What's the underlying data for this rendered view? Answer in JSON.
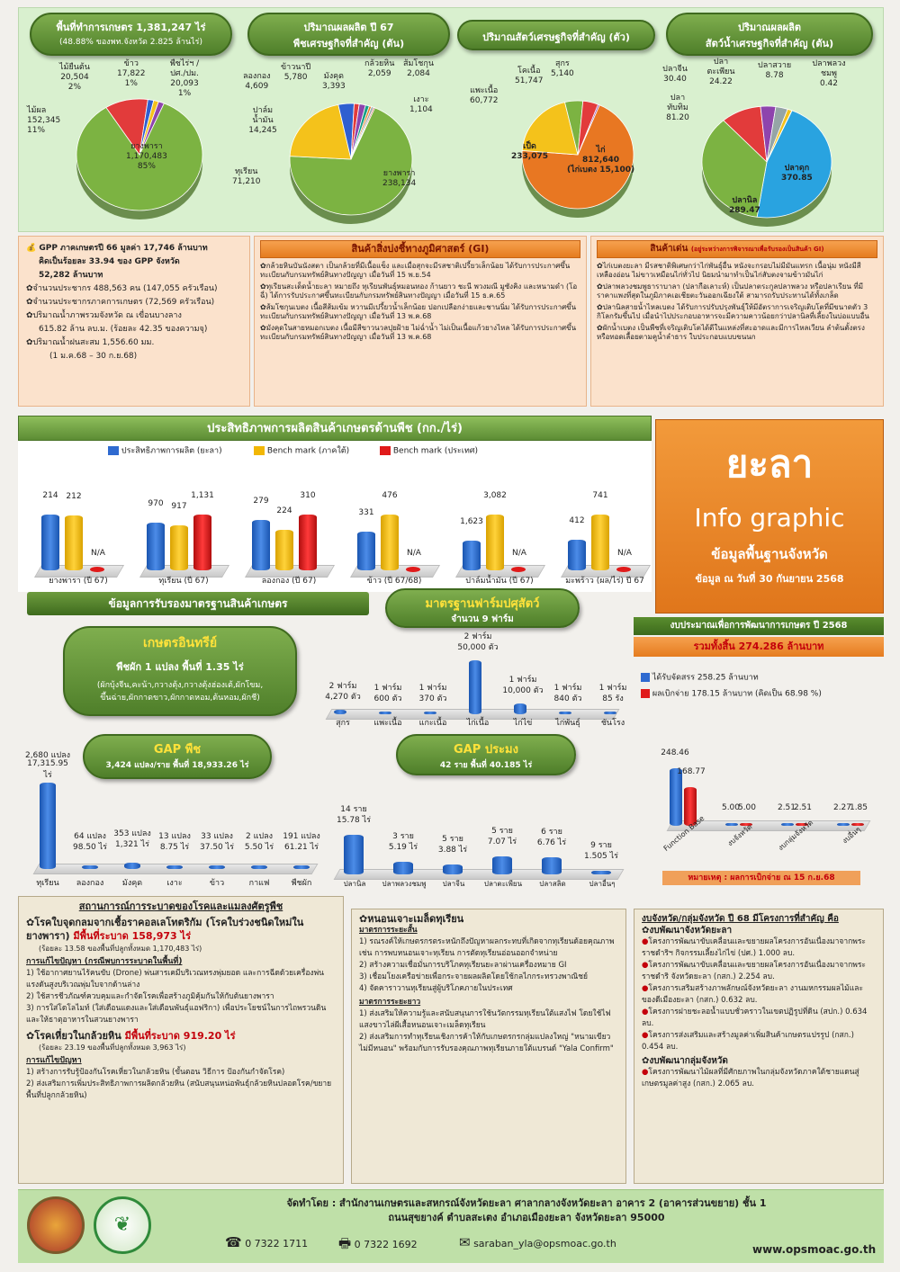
{
  "top": {
    "agri_area_title": "พื้นที่ทำการเกษตร 1,381,247 ไร่",
    "agri_area_sub": "(48.88% ของพท.จังหวัด 2.825 ล้านไร่)",
    "crop_title1": "ปริมาณผลผลิต ปี 67",
    "crop_title2": "พืชเศรษฐกิจที่สำคัญ (ตัน)",
    "livestock_title": "ปริมาณสัตว์เศรษฐกิจที่สำคัญ (ตัว)",
    "fish_title1": "ปริมาณผลผลิต",
    "fish_title2": "สัตว์น้ำเศรษฐกิจที่สำคัญ (ตัน)"
  },
  "pie1": [
    {
      "name": "ยางพารา",
      "value": "1,170,483",
      "pct": "85%",
      "color": "#7cb342"
    },
    {
      "name": "ไม้ผล",
      "value": "152,345",
      "pct": "11%",
      "color": "#e23b3b"
    },
    {
      "name": "ไม้ยืนต้น",
      "value": "20,504",
      "pct": "2%",
      "color": "#2f5fd0"
    },
    {
      "name": "ข้าว",
      "value": "17,822",
      "pct": "1%",
      "color": "#f4c21b"
    },
    {
      "name": "พืชไร่ฯ / ปศ./ปม.",
      "value": "20,093",
      "pct": "1%",
      "color": "#8e44ad"
    }
  ],
  "pie2": [
    {
      "name": "ยางพารา",
      "value": "238,134",
      "color": "#7cb342"
    },
    {
      "name": "ทุเรียน",
      "value": "71,210",
      "color": "#f4c21b"
    },
    {
      "name": "ปาล์มน้ำมัน",
      "value": "14,245",
      "color": "#2f5fd0"
    },
    {
      "name": "ลองกอง",
      "value": "4,609",
      "color": "#e23b3b"
    },
    {
      "name": "ข้าวนาปี",
      "value": "5,780",
      "color": "#8e44ad"
    },
    {
      "name": "มังคุด",
      "value": "3,393",
      "color": "#16a085"
    },
    {
      "name": "กล้วยหิน",
      "value": "2,059",
      "color": "#e67e22"
    },
    {
      "name": "ส้มโชกุน",
      "value": "2,084",
      "color": "#95a5a6"
    },
    {
      "name": "เงาะ",
      "value": "1,104",
      "color": "#c0392b"
    }
  ],
  "pie3": [
    {
      "name": "ไก่",
      "value": "812,640",
      "note": "(ไก่เบตง 15,100)",
      "color": "#e87722"
    },
    {
      "name": "เป็ด",
      "value": "233,075",
      "color": "#f4c21b"
    },
    {
      "name": "แพะเนื้อ",
      "value": "60,772",
      "color": "#7cb342"
    },
    {
      "name": "โคเนื้อ",
      "value": "51,747",
      "color": "#e23b3b"
    },
    {
      "name": "สุกร",
      "value": "5,140",
      "color": "#8e44ad"
    }
  ],
  "pie4": [
    {
      "name": "ปลาดุก",
      "value": "370.85",
      "color": "#29a3e0"
    },
    {
      "name": "ปลานิล",
      "value": "289.47",
      "color": "#7cb342"
    },
    {
      "name": "ปลาทับทิม",
      "value": "81.20",
      "color": "#e23b3b"
    },
    {
      "name": "ปลาจีน",
      "value": "30.40",
      "color": "#8e44ad"
    },
    {
      "name": "ปลาตะเพียน",
      "value": "24.22",
      "color": "#95a5a6"
    },
    {
      "name": "ปลาสวาย",
      "value": "8.78",
      "color": "#f4c21b"
    },
    {
      "name": "ปลาพลวงชมพู",
      "value": "0.42",
      "color": "#e67e22"
    }
  ],
  "gpp": {
    "lines": [
      "GPP ภาคเกษตรปี 66 มูลค่า 17,746 ล้านบาท",
      "คิดเป็นร้อยละ 33.94 ของ GPP จังหวัด",
      "52,282 ล้านบาท",
      "จำนวนประชากร 488,563 คน (147,055 ครัวเรือน)",
      "จำนวนประชากรภาคการเกษตร (72,569 ครัวเรือน)",
      "ปริมาณน้ำภาพรวมจังหวัด ณ เขื่อนบางลาง",
      "615.82 ล้าน ลบ.ม. (ร้อยละ 42.35 ของความจุ)",
      "ปริมาณน้ำฝนสะสม 1,556.60 มม.",
      "(1 ม.ค.68 – 30 ก.ย.68)"
    ]
  },
  "gi": {
    "title": "สินค้าสิ่งบ่งชี้ทางภูมิศาสตร์ (GI)",
    "items": [
      "กล้วยหินบันนังสตา เป็นกล้วยที่มีเนื้อแข็ง และเมื่อสุกจะมีรสชาติเปรี้ยวเล็กน้อย ได้รับการประกาศขึ้นทะเบียนกับกรมทรัพย์สินทางปัญญา เมื่อวันที่ 15 พ.ย.54",
      "ทุเรียนสะเด็ดน้ำยะลา หมายถึง ทุเรียนพันธุ์หมอนทอง ก้านยาว ชะนี พวงมณี มูซังคิง และหนามดำ (โอฉี่) ได้การรับประกาศขึ้นทะเบียนกับกรมทรัพย์สินทางปัญญา เมื่อวันที่ 15 ธ.ค.65",
      "ส้มโชกุนเบตง เนื้อสีส้มเข้ม หวานมีเปรี้ยวน้ำเล็กน้อย ปอกเปลือกง่ายและชานนิ่ม ได้รับการประกาศขึ้นทะเบียนกับกรมทรัพย์สินทางปัญญา เมื่อวันที่ 13 พ.ค.68",
      "มังคุดในสายหมอกเบตง เนื้อมีสีขาวนวลปุยฝ้าย ไม่ฉ่ำน้ำ ไม่เป็นเนื้อแก้วยางไหล ได้รับการประกาศขึ้นทะเบียนกับกรมทรัพย์สินทางปัญญา เมื่อวันที่ 13 พ.ค.68"
    ]
  },
  "featured": {
    "title": "สินค้าเด่น",
    "title_note": "(อยู่ระหว่างการพิจารณาเพื่อรับรองเป็นสินค้า GI)",
    "items": [
      "ไก่เบตงยะลา มีรสชาติพิเศษกว่าไก่พันธุ์อื่น หนังจะกรอบไม่มีมันแทรก เนื้อนุ่ม หนังมีสีเหลืองอ่อน ไม่ขาวเหมือนไก่ทั่วไป นิยมนำมาทำเป็นไก่สับตงจามข้าวมันไก่",
      "ปลาพลวงชมพูธาราบาลา (ปลากือเลาะห์) เป็นปลาตระกูลปลาพลวง หรือปลาเรียน ที่มีราคาแพงที่สุดในภูมิภาคเอเชียตะวันออกเฉียงใต้ สามารถรับประทานได้ทั้งเกล็ด",
      "ปลานิลสายน้ำไหลเบตง ได้รับการปรับปรุงพันธุ์ให้มีอัตราการเจริญเติบโตที่มีขนาดตัว 3 กิโลกรัมขึ้นไป เมื่อนำไปประกอบอาหารจะมีความคาวน้อยกว่าปลานิลที่เลี้ยงในบ่อแบบอื่น",
      "ผักน้ำเบตง เป็นพืชที่เจริญเติบโตได้ดีในแหล่งที่สะอาดและมีการไหลเวียน ลำต้นตั้งตรงหรือทอดเลื้อยตามคูน้ำลำธาร ใบประกอบแบบขนนก"
    ]
  },
  "eff_chart": {
    "title": "ประสิทธิภาพการผลิตสินค้าเกษตรด้านพืช (กก./ไร่)",
    "legend": [
      "ประสิทธิภาพการผลิต (ยะลา)",
      "Bench mark (ภาคใต้)",
      "Bench mark (ประเทศ)"
    ]
  },
  "chart_data": [
    {
      "type": "bar",
      "title": "ประสิทธิภาพการผลิตสินค้าเกษตรด้านพืช (กก./ไร่)",
      "categories": [
        "ยางพารา (ปี 67)",
        "ทุเรียน (ปี 67)",
        "ลองกอง (ปี 67)",
        "ข้าว (ปี 67/68)",
        "ปาล์มน้ำมัน (ปี 67)",
        "มะพร้าว (ผล/ไร่) ปี 67"
      ],
      "series": [
        {
          "name": "ประสิทธิภาพการผลิต (ยะลา)",
          "values": [
            214,
            970,
            279,
            331,
            1623,
            412
          ],
          "labels": [
            "214",
            "970",
            "279",
            "331",
            "1,623",
            "412"
          ]
        },
        {
          "name": "Bench mark (ภาคใต้)",
          "values": [
            212,
            917,
            224,
            476,
            3082,
            741
          ],
          "labels": [
            "212",
            "917",
            "224",
            "476",
            "3,082",
            "741"
          ]
        },
        {
          "name": "Bench mark (ประเทศ)",
          "values": [
            null,
            1131,
            310,
            null,
            null,
            null
          ],
          "labels": [
            "N/A",
            "1,131",
            "310",
            "N/A",
            "N/A",
            "N/A"
          ]
        }
      ]
    },
    {
      "type": "bar",
      "title": "มาตรฐานฟาร์มปศุสัตว์",
      "categories": [
        "สุกร",
        "แพะเนื้อ",
        "แกะเนื้อ",
        "ไก่เนื้อ",
        "ไก่ไข่",
        "ไก่พันธุ์",
        "ชันโรง"
      ],
      "values": [
        4270,
        600,
        370,
        50000,
        10000,
        840,
        85
      ],
      "labels": [
        "2 ฟาร์ม 4,270 ตัว",
        "1 ฟาร์ม 600 ตัว",
        "1 ฟาร์ม 370 ตัว",
        "2 ฟาร์ม 50,000 ตัว",
        "1 ฟาร์ม 10,000 ตัว",
        "1 ฟาร์ม 840 ตัว",
        "1 ฟาร์ม 85 รัง"
      ]
    },
    {
      "type": "bar",
      "title": "GAP พืช",
      "categories": [
        "ทุเรียน",
        "ลองกอง",
        "มังคุด",
        "เงาะ",
        "ข้าว",
        "กาแฟ",
        "พืชผัก"
      ],
      "values": [
        17315.95,
        98.5,
        1321,
        8.75,
        37.5,
        5.5,
        61.21
      ],
      "labels": [
        "2,680 แปลง 17,315.95 ไร่",
        "64 แปลง 98.50 ไร่",
        "353 แปลง 1,321 ไร่",
        "13 แปลง 8.75 ไร่",
        "33 แปลง 37.50 ไร่",
        "2 แปลง 5.50 ไร่",
        "191 แปลง 61.21 ไร่"
      ]
    },
    {
      "type": "bar",
      "title": "GAP ประมง",
      "categories": [
        "ปลานิล",
        "ปลาพลวงชมพู",
        "ปลาจีน",
        "ปลาตะเพียน",
        "ปลาสลิด",
        "ปลาอื่นๆ"
      ],
      "values": [
        15.78,
        5.19,
        3.88,
        7.07,
        6.76,
        1.505
      ],
      "labels": [
        "14 ราย 15.78 ไร่",
        "3 ราย 5.19 ไร่",
        "5 ราย 3.88 ไร่",
        "5 ราย 7.07 ไร่",
        "6 ราย 6.76 ไร่",
        "9 ราย 1.505 ไร่"
      ]
    },
    {
      "type": "bar",
      "title": "งบประมาณเพื่อการพัฒนาการเกษตร ปี 2568",
      "categories": [
        "Function Base",
        "งบจังหวัด",
        "งบกลุ่มจังหวัด",
        "งบอื่นๆ"
      ],
      "series": [
        {
          "name": "ได้รับจัดสรร",
          "values": [
            248.46,
            5.0,
            2.51,
            2.27
          ]
        },
        {
          "name": "ผลเบิกจ่าย",
          "values": [
            168.77,
            5.0,
            2.51,
            1.85
          ]
        }
      ]
    }
  ],
  "yala": {
    "name": "ยะลา",
    "sub1": "Info graphic",
    "sub2": "ข้อมูลพื้นฐานจังหวัด",
    "date": "ข้อมูล ณ วันที่ 30 กันยายน 2568"
  },
  "cert": {
    "title": "ข้อมูลการรับรองมาตรฐานสินค้าเกษตร"
  },
  "livestock_std": {
    "title": "มาตรฐานฟาร์มปศุสัตว์",
    "count": "จำนวน 9 ฟาร์ม"
  },
  "organic": {
    "title": "เกษตรอินทรีย์",
    "line1": "พืชผัก 1 แปลง พื้นที่ 1.35 ไร่",
    "line2": "(ผักบุ้งจีน,คะน้า,กวางตุ้ง,กวางตุ้งฮ่องเต้,ผักโขม,",
    "line3": "ขึ้นฉ่าย,ผักกาดขาว,ผักกาดหอม,ต้นหอม,ผักชี)"
  },
  "gap_plant": {
    "title": "GAP พืช",
    "line": "3,424 แปลง/ราย พื้นที่ 18,933.26 ไร่"
  },
  "gap_fish": {
    "title": "GAP ประมง",
    "line": "42 ราย พื้นที่ 40.185 ไร่"
  },
  "budget": {
    "title": "งบประมาณเพื่อการพัฒนาการเกษตร ปี 2568",
    "total": "รวมทั้งสิ้น 274.286 ล้านบาท",
    "received": "ได้รับจัดสรร  258.25 ล้านบาท",
    "spent": "ผลเบิกจ่าย  178.15  ล้านบาท (คิดเป็น 68.98 %)",
    "labels": [
      [
        "248.46",
        "168.77"
      ],
      [
        "5.00",
        "5.00"
      ],
      [
        "2.51",
        "2.51"
      ],
      [
        "2.27",
        "1.85"
      ]
    ],
    "note": "หมายเหตุ : ผลการเบิกจ่าย ณ 15 ก.ย.68"
  },
  "disease": {
    "title": "สถานการณ์การระบาดของโรคและแมลงศัตรูพืช",
    "h1": "โรคใบจุดกลมจากเชื้อราคอลเลโทตริกัม (โรคใบร่วงชนิดใหม่ในยางพารา)",
    "h1b": "มีพื้นที่ระบาด 158,973 ไร่",
    "h1sub": "(ร้อยละ 13.58 ของพื้นที่ปลูกทั้งหมด 1,170,483 ไร่)",
    "fix1_title": "การแก้ไขปัญหา (กรณีพบการระบาดในพื้นที่)",
    "fix1": [
      "1) ใช้อากาศยานไร้คนขับ (Drone) พ่นสารเคมีบริเวณทรงพุ่มยอด และการฉีดด้วยเครื่องพ่นแรงดันสูงบริเวณพุ่มใบจากด้านล่าง",
      "2) ใช้สารชีวภัณฑ์ควบคุมและกำจัดโรคเพื่อสร้างภูมิคุ้มกันให้กับต้นยางพารา",
      "3) การใส่โดโลไมท์ (ใส่เดือนแดงและใส่เดือนพันธุ์แอฟริกา) เพื่อประโยชน์ในการไถพรวนดินและให้ธาตุอาหารในสวนยางพารา"
    ],
    "h2": "โรคเหี่ยวในกล้วยหิน",
    "h2b": "มีพื้นที่ระบาด 919.20 ไร่",
    "h2sub": "(ร้อยละ 23.19 ของพื้นที่ปลูกทั้งหมด 3,963 ไร่)",
    "fix2_title": "การแก้ไขปัญหา",
    "fix2": [
      "1) สร้างการรับรู้ป้องกันโรคเหี่ยวในกล้วยหิน (ขั้นตอน วิธีการ ป้องกันกำจัดโรค)",
      "2) ส่งเสริมการเพิ่มประสิทธิภาพการผลิตกล้วยหิน (สนับสนุนหน่อพันธุ์กล้วยหินปลอดโรค/ขยายพื้นที่ปลูกกล้วยหิน)"
    ]
  },
  "borer": {
    "title": "หนอนเจาะเมล็ดทุเรียน",
    "short_title": "มาตรการระยะสั้น",
    "short": [
      "1) รณรงค์ให้เกษตรกรตระหนักถึงปัญหาผลกระทบที่เกิดจากทุเรียนด้อยคุณภาพ เช่น การพบหนอนเจาะทุเรียน การตัดทุเรียนอ่อนออกจำหน่าย",
      "2) สร้างความเชื่อมั่นการบริโภคทุเรียนยะลาผ่านเครื่องหมาย GI",
      "3) เชื่อมโยงเครือข่ายเพื่อกระจายผลผลิตโดยใช้กลไกกระทรวงพาณิชย์",
      "4) จัดคาราวานทุเรียนสู่ผู้บริโภคภายในประเทศ"
    ],
    "long_title": "มาตรการระยะยาว",
    "long": [
      "1) ส่งเสริมให้ความรู้และสนับสนุนการใช้นวัตกรรมทุเรียนใต้แสงไฟ โดยใช้ไฟแสงขาวไล่ผีเสื้อหนอนเจาะเมล็ดทุเรียน",
      "2) ส่งเสริมการทำทุเรียนเชิงการค้าให้กับเกษตรกรกลุ่มแปลงใหญ่ \"หนามเขียว ไม่มีหนอน\" พร้อมกับการรับรองคุณภาพทุเรียนภายใต้แบรนด์ \"Yala Confirm\""
    ]
  },
  "projects": {
    "title": "งบจังหวัด/กลุ่มจังหวัด ปี 68  มีโครงการที่สำคัญ คือ",
    "prov_title": "งบพัฒนาจังหวัดยะลา",
    "prov": [
      "โครงการพัฒนาขับเคลื่อนและขยายผลโครงการอันเนื่องมาจากพระราชดำริฯ กิจกรรมเลี้ยงไก่ไข่ (ปศ.) 1.000 ลบ.",
      "โครงการพัฒนาขับเคลื่อนและขยายผลโครงการอันเนื่องมาจากพระราชดำริ จังหวัดยะลา (กสก.) 2.254 ลบ.",
      "โครงการเสริมสร้างภาพลักษณ์จังหวัดยะลา งานมหกรรมผลไม้และของดีเมืองยะลา (กสก.) 0.632 ลบ.",
      "โครงการฝายชะลอน้ำแบบชั่วคราวในเขตปฏิรูปที่ดิน (สปก.) 0.634 ลบ.",
      "โครงการส่งเสริมและสร้างมูลค่าเพิ่มสินค้าเกษตรแปรรูป (กสก.) 0.454 ลบ."
    ],
    "group_title": "งบพัฒนากลุ่มจังหวัด",
    "group": [
      "โครงการพัฒนาไม้ผลที่มีศักยภาพในกลุ่มจังหวัดภาคใต้ชายแดนสู่เกษตรมูลค่าสูง (กสก.) 2.065 ลบ."
    ]
  },
  "footer": {
    "line1": "จัดทำโดย : สำนักงานเกษตรและสหกรณ์จังหวัดยะลา ศาลากลางจังหวัดยะลา อาคาร 2 (อาคารส่วนขยาย) ชั้น 1",
    "line2": "ถนนสุขยางค์ ตำบลสะเตง อำเภอเมืองยะลา จังหวัดยะลา 95000",
    "phone": "0 7322 1711",
    "fax": "0 7322 1692",
    "email": "saraban_yla@opsmoac.go.th",
    "web": "www.opsmoac.go.th"
  }
}
